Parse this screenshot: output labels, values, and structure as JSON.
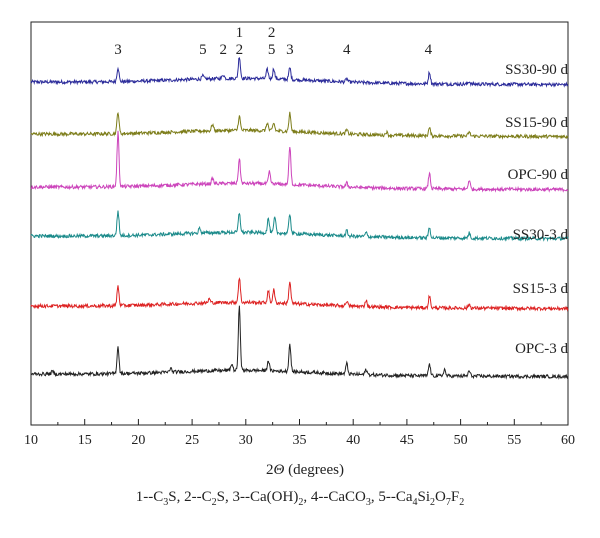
{
  "chart_data": {
    "type": "line",
    "xlabel_prefix": "2",
    "xlabel_symbol": "Θ",
    "xlabel_suffix": " (degrees)",
    "xlim": [
      10,
      60
    ],
    "x_ticks": [
      10,
      15,
      20,
      25,
      30,
      35,
      40,
      45,
      50,
      55,
      60
    ],
    "y_ticks_shown": false,
    "grid": false,
    "peak_labels": [
      {
        "text": "3",
        "x": 18.1,
        "line": 0
      },
      {
        "text": "5",
        "x": 26.0,
        "line": 0
      },
      {
        "text": "2",
        "x": 27.9,
        "line": 0
      },
      {
        "text": "1",
        "x": 29.4,
        "line": 1
      },
      {
        "text": "2",
        "x": 29.4,
        "line": 0
      },
      {
        "text": "2",
        "x": 32.4,
        "line": 1
      },
      {
        "text": "5",
        "x": 32.4,
        "line": 0
      },
      {
        "text": "3",
        "x": 34.1,
        "line": 0
      },
      {
        "text": "4",
        "x": 39.4,
        "line": 0
      },
      {
        "text": "4",
        "x": 47.0,
        "line": 0
      }
    ],
    "series": [
      {
        "name": "SS30-90 d",
        "color": "#2b2b9a",
        "peaks": [
          [
            18.1,
            0.55
          ],
          [
            26.0,
            0.12
          ],
          [
            27.9,
            0.15
          ],
          [
            29.4,
            0.85
          ],
          [
            32.0,
            0.35
          ],
          [
            32.6,
            0.4
          ],
          [
            34.1,
            0.45
          ],
          [
            39.4,
            0.12
          ],
          [
            47.1,
            0.45
          ],
          [
            50.8,
            0.1
          ]
        ]
      },
      {
        "name": "SS15-90 d",
        "color": "#7d7d1a",
        "peaks": [
          [
            18.1,
            0.85
          ],
          [
            26.9,
            0.25
          ],
          [
            29.4,
            0.55
          ],
          [
            32.0,
            0.3
          ],
          [
            32.6,
            0.3
          ],
          [
            34.1,
            0.7
          ],
          [
            39.4,
            0.15
          ],
          [
            43.1,
            0.12
          ],
          [
            47.1,
            0.3
          ],
          [
            50.8,
            0.15
          ]
        ]
      },
      {
        "name": "OPC-90 d",
        "color": "#cc44bb",
        "peaks": [
          [
            18.1,
            2.1
          ],
          [
            26.9,
            0.2
          ],
          [
            29.4,
            0.95
          ],
          [
            32.2,
            0.45
          ],
          [
            34.1,
            1.45
          ],
          [
            39.4,
            0.15
          ],
          [
            47.1,
            0.6
          ],
          [
            50.8,
            0.35
          ]
        ]
      },
      {
        "name": "SS30-3 d",
        "color": "#1a8a8a",
        "peaks": [
          [
            18.1,
            0.95
          ],
          [
            25.7,
            0.2
          ],
          [
            29.4,
            0.75
          ],
          [
            32.1,
            0.55
          ],
          [
            32.7,
            0.6
          ],
          [
            34.1,
            0.75
          ],
          [
            39.4,
            0.2
          ],
          [
            41.2,
            0.15
          ],
          [
            47.1,
            0.4
          ],
          [
            50.8,
            0.2
          ]
        ]
      },
      {
        "name": "SS15-3 d",
        "color": "#dd2222",
        "peaks": [
          [
            18.1,
            0.75
          ],
          [
            26.6,
            0.15
          ],
          [
            29.4,
            0.95
          ],
          [
            32.1,
            0.45
          ],
          [
            32.6,
            0.5
          ],
          [
            34.1,
            0.85
          ],
          [
            39.4,
            0.2
          ],
          [
            41.2,
            0.25
          ],
          [
            47.1,
            0.45
          ],
          [
            50.8,
            0.15
          ]
        ]
      },
      {
        "name": "OPC-3 d",
        "color": "#222222",
        "peaks": [
          [
            12.0,
            0.1
          ],
          [
            18.1,
            1.05
          ],
          [
            23.0,
            0.15
          ],
          [
            28.7,
            0.25
          ],
          [
            29.4,
            2.45
          ],
          [
            32.1,
            0.4
          ],
          [
            34.1,
            1.05
          ],
          [
            39.4,
            0.4
          ],
          [
            41.2,
            0.2
          ],
          [
            47.1,
            0.45
          ],
          [
            48.5,
            0.25
          ],
          [
            50.8,
            0.2
          ]
        ]
      }
    ]
  },
  "legend": {
    "items": [
      {
        "n": "1",
        "sep": "--",
        "parts": [
          [
            "C",
            ""
          ],
          [
            "3",
            "sub"
          ],
          [
            "S",
            ""
          ]
        ]
      },
      {
        "n": "2",
        "sep": "--",
        "parts": [
          [
            "C",
            ""
          ],
          [
            "2",
            "sub"
          ],
          [
            "S",
            ""
          ]
        ]
      },
      {
        "n": "3",
        "sep": "--",
        "parts": [
          [
            "Ca(OH)",
            ""
          ],
          [
            "2",
            "sub"
          ]
        ]
      },
      {
        "n": "4",
        "sep": "--",
        "parts": [
          [
            "CaCO",
            ""
          ],
          [
            "3",
            "sub"
          ]
        ]
      },
      {
        "n": "5",
        "sep": "--",
        "parts": [
          [
            "Ca",
            ""
          ],
          [
            "4",
            "sub"
          ],
          [
            "Si",
            ""
          ],
          [
            "2",
            "sub"
          ],
          [
            "O",
            ""
          ],
          [
            "7",
            "sub"
          ],
          [
            "F",
            ""
          ],
          [
            "2",
            "sub"
          ]
        ]
      }
    ]
  }
}
